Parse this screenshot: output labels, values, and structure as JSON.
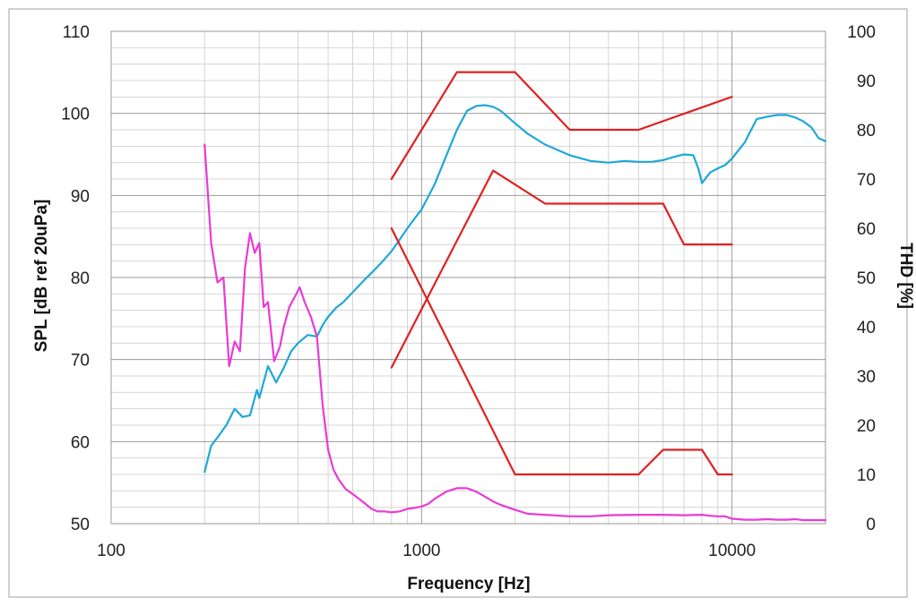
{
  "chart_data": {
    "type": "line",
    "title": "",
    "xlabel": "Frequency [Hz]",
    "ylabel": "SPL [dB ref 20uPa]",
    "y2label": "THD [%]",
    "xscale": "log",
    "xlim": [
      100,
      20000
    ],
    "ylim": [
      50,
      110
    ],
    "y2lim": [
      0,
      100
    ],
    "xticks": [
      100,
      1000,
      10000
    ],
    "xtick_labels": [
      "100",
      "1000",
      "10000"
    ],
    "yticks": [
      50,
      60,
      70,
      80,
      90,
      100,
      110
    ],
    "ytick_labels": [
      "50",
      "60",
      "70",
      "80",
      "90",
      "100",
      "110"
    ],
    "y2ticks": [
      0,
      10,
      20,
      30,
      40,
      50,
      60,
      70,
      80,
      90,
      100
    ],
    "y2tick_labels": [
      "0",
      "10",
      "20",
      "30",
      "40",
      "50",
      "60",
      "70",
      "80",
      "90",
      "100"
    ],
    "grid": true,
    "legend": "none",
    "series": [
      {
        "color": "#1fa8d8",
        "axis": "left",
        "x": [
          200,
          210,
          220,
          235,
          250,
          265,
          280,
          295,
          300,
          320,
          340,
          360,
          380,
          400,
          430,
          460,
          480,
          500,
          530,
          560,
          600,
          650,
          700,
          750,
          800,
          850,
          900,
          950,
          1000,
          1100,
          1200,
          1300,
          1400,
          1500,
          1600,
          1700,
          1800,
          2000,
          2200,
          2500,
          3000,
          3500,
          4000,
          4500,
          5000,
          5500,
          6000,
          6500,
          7000,
          7500,
          7800,
          8000,
          8500,
          9000,
          9500,
          10000,
          11000,
          12000,
          13000,
          14000,
          15000,
          16000,
          17000,
          18000,
          19000,
          20000
        ],
        "y": [
          56.3,
          59.5,
          60.5,
          62,
          64,
          63,
          63.2,
          66.3,
          65.3,
          69.2,
          67.2,
          69,
          71,
          72,
          73,
          72.8,
          74.2,
          75.2,
          76.3,
          77,
          78.2,
          79.6,
          80.8,
          82,
          83.2,
          84.6,
          86,
          87.2,
          88.3,
          91.3,
          94.8,
          98,
          100.3,
          100.9,
          101,
          100.8,
          100.3,
          98.8,
          97.5,
          96.2,
          94.9,
          94.2,
          94,
          94.2,
          94.1,
          94.1,
          94.3,
          94.7,
          95,
          94.9,
          93.2,
          91.5,
          92.8,
          93.3,
          93.7,
          94.5,
          96.5,
          99.3,
          99.6,
          99.8,
          99.8,
          99.5,
          99,
          98.3,
          97,
          96.6
        ]
      },
      {
        "color": "#e83bd4",
        "axis": "right",
        "x": [
          200,
          210,
          220,
          230,
          240,
          250,
          260,
          270,
          280,
          290,
          300,
          310,
          320,
          335,
          350,
          360,
          375,
          390,
          405,
          420,
          440,
          460,
          480,
          500,
          520,
          540,
          570,
          600,
          630,
          660,
          690,
          720,
          760,
          800,
          850,
          900,
          950,
          1000,
          1050,
          1100,
          1200,
          1300,
          1400,
          1500,
          1600,
          1700,
          1800,
          2000,
          2200,
          2500,
          3000,
          3500,
          4000,
          5000,
          6000,
          7000,
          8000,
          8500,
          9000,
          9500,
          10000,
          11000,
          12000,
          13000,
          14000,
          15000,
          16000,
          17000,
          18000,
          19000,
          20000
        ],
        "y": [
          77,
          57,
          49,
          50,
          32,
          37,
          35,
          52,
          59,
          55,
          57,
          44,
          45,
          33,
          36,
          40,
          44,
          46,
          48,
          45,
          42,
          38,
          24,
          15,
          11,
          9,
          7,
          6,
          5,
          4,
          3,
          2.5,
          2.5,
          2.3,
          2.5,
          3,
          3.2,
          3.5,
          4,
          5,
          6.5,
          7.2,
          7.2,
          6.5,
          5.5,
          4.5,
          3.8,
          2.8,
          2,
          1.8,
          1.5,
          1.5,
          1.7,
          1.8,
          1.8,
          1.7,
          1.8,
          1.6,
          1.5,
          1.5,
          1,
          0.8,
          0.8,
          0.9,
          0.8,
          0.8,
          0.9,
          0.7,
          0.7,
          0.7,
          0.7
        ]
      },
      {
        "color": "#e02020",
        "axis": "right",
        "x": [
          800,
          1300,
          2000,
          3000,
          5000,
          10000
        ],
        "y": [
          70,
          91.7,
          91.7,
          80,
          80,
          86.7
        ]
      },
      {
        "color": "#e02020",
        "axis": "right",
        "x": [
          800,
          1700,
          2500,
          6000,
          7000,
          10000
        ],
        "y": [
          31.7,
          71.7,
          65,
          65,
          56.7,
          56.7
        ]
      },
      {
        "color": "#e02020",
        "axis": "right",
        "x": [
          800,
          2000,
          5000,
          6000,
          8000,
          9000,
          10000
        ],
        "y": [
          60,
          10,
          10,
          15,
          15,
          10,
          10
        ]
      }
    ]
  }
}
